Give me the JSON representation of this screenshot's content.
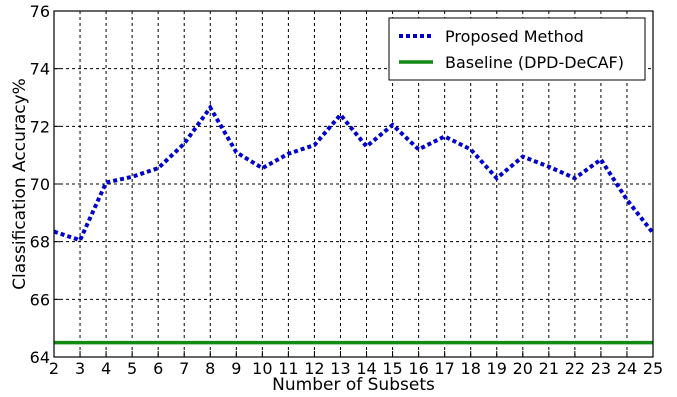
{
  "chart_data": {
    "type": "line",
    "title": "",
    "xlabel": "Number of Subsets",
    "ylabel": "Classification Accuracy%",
    "x": [
      2,
      3,
      4,
      5,
      6,
      7,
      8,
      9,
      10,
      11,
      12,
      13,
      14,
      15,
      16,
      17,
      18,
      19,
      20,
      21,
      22,
      23,
      24,
      25
    ],
    "xlim": [
      2,
      25
    ],
    "ylim": [
      64,
      76
    ],
    "yticks": [
      64,
      66,
      68,
      70,
      72,
      74,
      76
    ],
    "grid": true,
    "legend_position": "top-right",
    "series": [
      {
        "name": "Proposed Method",
        "style": "dotted",
        "color": "#0000cc",
        "values": [
          68.35,
          68.05,
          70.05,
          70.25,
          70.55,
          71.4,
          72.65,
          71.1,
          70.55,
          71.05,
          71.35,
          72.4,
          71.3,
          72.05,
          71.2,
          71.65,
          71.2,
          70.2,
          70.95,
          70.6,
          70.2,
          70.85,
          69.45,
          68.3
        ]
      },
      {
        "name": "Baseline (DPD-DeCAF)",
        "style": "solid",
        "color": "#138a13",
        "values": [
          64.5,
          64.5,
          64.5,
          64.5,
          64.5,
          64.5,
          64.5,
          64.5,
          64.5,
          64.5,
          64.5,
          64.5,
          64.5,
          64.5,
          64.5,
          64.5,
          64.5,
          64.5,
          64.5,
          64.5,
          64.5,
          64.5,
          64.5,
          64.5
        ]
      }
    ]
  }
}
